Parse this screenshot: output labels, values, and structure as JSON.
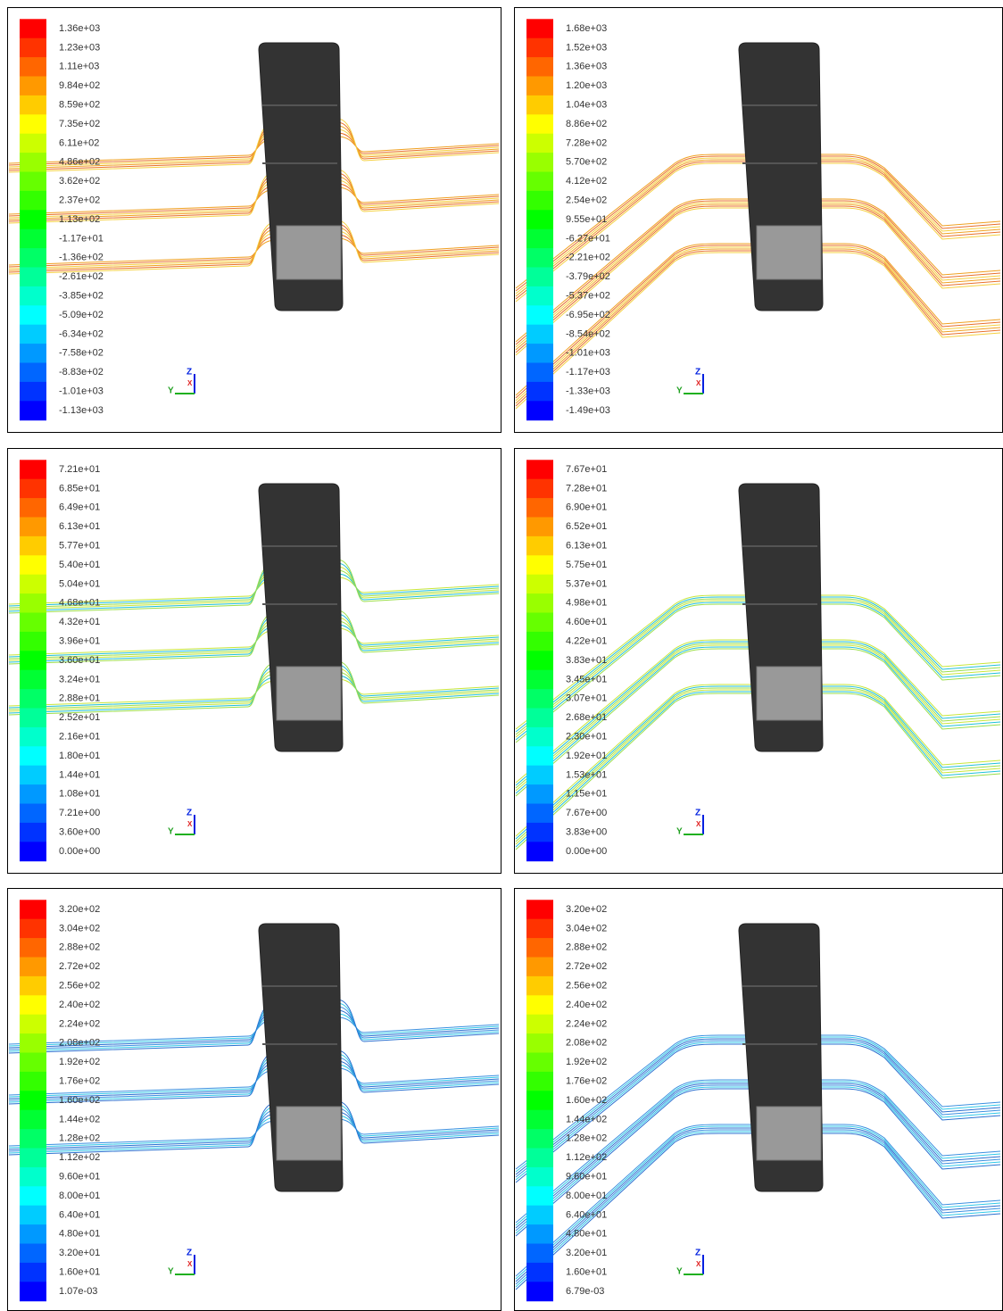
{
  "panels": [
    {
      "legend_labels": [
        "1.36e+03",
        "1.23e+03",
        "1.11e+03",
        "9.84e+02",
        "8.59e+02",
        "7.35e+02",
        "6.11e+02",
        "4.86e+02",
        "3.62e+02",
        "2.37e+02",
        "1.13e+02",
        "-1.17e+01",
        "-1.36e+02",
        "-2.61e+02",
        "-3.85e+02",
        "-5.09e+02",
        "-6.34e+02",
        "-7.58e+02",
        "-8.83e+02",
        "-1.01e+03",
        "-1.13e+03"
      ]
    },
    {
      "legend_labels": [
        "1.68e+03",
        "1.52e+03",
        "1.36e+03",
        "1.20e+03",
        "1.04e+03",
        "8.86e+02",
        "7.28e+02",
        "5.70e+02",
        "4.12e+02",
        "2.54e+02",
        "9.55e+01",
        "-6.27e+01",
        "-2.21e+02",
        "-3.79e+02",
        "-5.37e+02",
        "-6.95e+02",
        "-8.54e+02",
        "-1.01e+03",
        "-1.17e+03",
        "-1.33e+03",
        "-1.49e+03"
      ]
    },
    {
      "legend_labels": [
        "7.21e+01",
        "6.85e+01",
        "6.49e+01",
        "6.13e+01",
        "5.77e+01",
        "5.40e+01",
        "5.04e+01",
        "4.68e+01",
        "4.32e+01",
        "3.96e+01",
        "3.60e+01",
        "3.24e+01",
        "2.88e+01",
        "2.52e+01",
        "2.16e+01",
        "1.80e+01",
        "1.44e+01",
        "1.08e+01",
        "7.21e+00",
        "3.60e+00",
        "0.00e+00"
      ]
    },
    {
      "legend_labels": [
        "7.67e+01",
        "7.28e+01",
        "6.90e+01",
        "6.52e+01",
        "6.13e+01",
        "5.75e+01",
        "5.37e+01",
        "4.98e+01",
        "4.60e+01",
        "4.22e+01",
        "3.83e+01",
        "3.45e+01",
        "3.07e+01",
        "2.68e+01",
        "2.30e+01",
        "1.92e+01",
        "1.53e+01",
        "1.15e+01",
        "7.67e+00",
        "3.83e+00",
        "0.00e+00"
      ]
    },
    {
      "legend_labels": [
        "3.20e+02",
        "3.04e+02",
        "2.88e+02",
        "2.72e+02",
        "2.56e+02",
        "2.40e+02",
        "2.24e+02",
        "2.08e+02",
        "1.92e+02",
        "1.76e+02",
        "1.60e+02",
        "1.44e+02",
        "1.28e+02",
        "1.12e+02",
        "9.60e+01",
        "8.00e+01",
        "6.40e+01",
        "4.80e+01",
        "3.20e+01",
        "1.60e+01",
        "1.07e-03"
      ]
    },
    {
      "legend_labels": [
        "3.20e+02",
        "3.04e+02",
        "2.88e+02",
        "2.72e+02",
        "2.56e+02",
        "2.40e+02",
        "2.24e+02",
        "2.08e+02",
        "1.92e+02",
        "1.76e+02",
        "1.60e+02",
        "1.44e+02",
        "1.28e+02",
        "1.12e+02",
        "9.60e+01",
        "8.00e+01",
        "6.40e+01",
        "4.80e+01",
        "3.20e+01",
        "1.60e+01",
        "6.79e-03"
      ]
    }
  ],
  "axis_triad": {
    "z": "Z",
    "y": "Y",
    "x": "X"
  }
}
